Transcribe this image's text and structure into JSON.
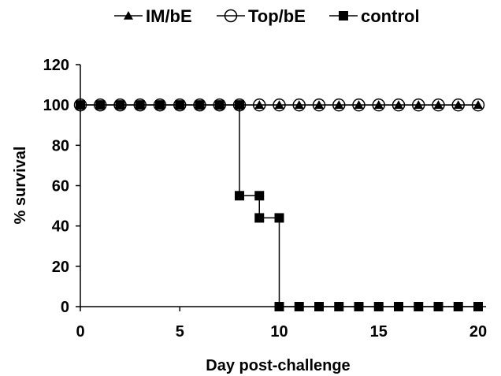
{
  "chart_data": {
    "type": "line",
    "title": "",
    "xlabel": "Day post-challenge",
    "ylabel": "% survival",
    "xlim": [
      0,
      20
    ],
    "ylim": [
      0,
      120
    ],
    "xticks": [
      0,
      5,
      10,
      15,
      20
    ],
    "yticks": [
      0,
      20,
      40,
      60,
      80,
      100,
      120
    ],
    "step": true,
    "grid": false,
    "legend_position": "top",
    "series": [
      {
        "name": "IM/bE",
        "marker": "triangle",
        "color": "#000000",
        "x": [
          0,
          1,
          2,
          3,
          4,
          5,
          6,
          7,
          8,
          9,
          10,
          11,
          12,
          13,
          14,
          15,
          16,
          17,
          18,
          19,
          20
        ],
        "y": [
          100,
          100,
          100,
          100,
          100,
          100,
          100,
          100,
          100,
          100,
          100,
          100,
          100,
          100,
          100,
          100,
          100,
          100,
          100,
          100,
          100
        ]
      },
      {
        "name": "Top/bE",
        "marker": "open-circle",
        "color": "#000000",
        "x": [
          0,
          1,
          2,
          3,
          4,
          5,
          6,
          7,
          8,
          9,
          10,
          11,
          12,
          13,
          14,
          15,
          16,
          17,
          18,
          19,
          20
        ],
        "y": [
          100,
          100,
          100,
          100,
          100,
          100,
          100,
          100,
          100,
          100,
          100,
          100,
          100,
          100,
          100,
          100,
          100,
          100,
          100,
          100,
          100
        ]
      },
      {
        "name": "control",
        "marker": "filled-square",
        "color": "#000000",
        "x": [
          0,
          1,
          2,
          3,
          4,
          5,
          6,
          7,
          8,
          8,
          9,
          9,
          10,
          10,
          11,
          12,
          13,
          14,
          15,
          16,
          17,
          18,
          19,
          20
        ],
        "y": [
          100,
          100,
          100,
          100,
          100,
          100,
          100,
          100,
          100,
          55,
          55,
          44,
          44,
          0,
          0,
          0,
          0,
          0,
          0,
          0,
          0,
          0,
          0,
          0
        ]
      }
    ]
  }
}
